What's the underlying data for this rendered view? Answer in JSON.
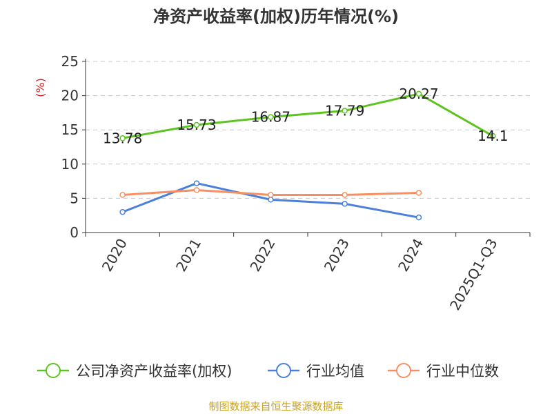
{
  "chart_data": {
    "type": "line",
    "title": "净资产收益率(加权)历年情况(%)",
    "ylabel": "(%)",
    "xlabel": "",
    "categories": [
      "2020",
      "2021",
      "2022",
      "2023",
      "2024",
      "2025Q1-Q3"
    ],
    "ylim": [
      0,
      25
    ],
    "yticks": [
      0,
      5,
      10,
      15,
      20,
      25
    ],
    "grid": true,
    "legend_position": "bottom",
    "series": [
      {
        "name": "公司净资产收益率(加权)",
        "color": "#5cc41f",
        "values": [
          13.78,
          15.73,
          16.87,
          17.79,
          20.27,
          14.1
        ],
        "labels": [
          "13.78",
          "15.73",
          "16.87",
          "17.79",
          "20.27",
          "14.1"
        ]
      },
      {
        "name": "行业均值",
        "color": "#4b7fdc",
        "values": [
          3.0,
          7.2,
          4.8,
          4.2,
          2.2,
          null
        ]
      },
      {
        "name": "行业中位数",
        "color": "#f59064",
        "values": [
          5.5,
          6.2,
          5.5,
          5.5,
          5.8,
          null
        ]
      }
    ]
  },
  "source": "制图数据来自恒生聚源数据库"
}
